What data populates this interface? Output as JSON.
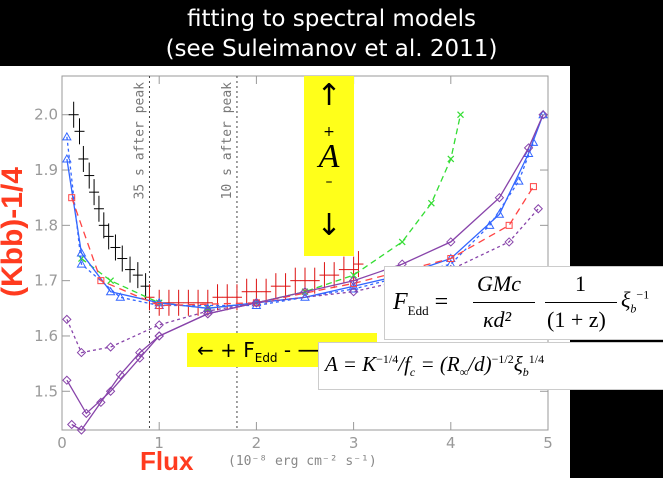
{
  "header": {
    "line1": "fitting to spectral models",
    "line2": "(see Suleimanov et al. 2011)"
  },
  "axis": {
    "ylabel": "(Kbb)-1/4",
    "xlabel": "Flux",
    "xunit": "(10⁻⁸ erg cm⁻² s⁻¹)"
  },
  "annotations": {
    "peak35": "35 s after peak",
    "peak10": "10 s after peak",
    "a_up": "↑",
    "a_plus": "+",
    "a_symbol": "A",
    "a_minus": "–",
    "a_down": "↓",
    "fedd_label": "←   + F",
    "fedd_sub": "Edd",
    "fedd_tail": " - ⟶"
  },
  "equations": {
    "eq1_lhs": "F",
    "eq1_lhs_sub": "Edd",
    "eq1_num": "GMc",
    "eq1_den": "κd²",
    "eq1_num2": "1",
    "eq1_den2": "(1 + z)",
    "eq1_xi": "ξ",
    "eq1_xi_sub": "b",
    "eq1_xi_sup": "−1",
    "eq2": "A = K",
    "eq2_sup1": "−1/4",
    "eq2_mid": "/f",
    "eq2_mid_sub": "c",
    "eq2_rest": " = (R",
    "eq2_rsub": "∞",
    "eq2_rest2": "/d)",
    "eq2_sup2": "−1/2",
    "eq2_xi": "ξ",
    "eq2_xi_sub": "b",
    "eq2_xi_sup": "1/4"
  },
  "colors": {
    "data": "#000000",
    "data_red": "#dd1111",
    "model_green": "#33dd33",
    "model_blue": "#3366ff",
    "model_purple": "#8844aa",
    "model_red": "#ff4444",
    "highlight": "#ffff1a",
    "label_red": "#ff3b1f"
  },
  "chart_data": {
    "type": "scatter",
    "xlabel": "Flux",
    "ylabel": "(Kbb)-1/4",
    "xlim": [
      0,
      5
    ],
    "ylim": [
      1.43,
      2.07
    ],
    "xticks": [
      0,
      1,
      2,
      3,
      4,
      5
    ],
    "yticks": [
      1.5,
      1.6,
      1.7,
      1.8,
      1.9,
      2.0
    ],
    "vlines": [
      {
        "x": 0.9,
        "label": "35 s after peak"
      },
      {
        "x": 1.8,
        "label": "10 s after peak"
      }
    ],
    "series": [
      {
        "kind": "errorbar",
        "color": "data",
        "points": [
          [
            0.12,
            2.0
          ],
          [
            0.18,
            1.97
          ],
          [
            0.22,
            1.92
          ],
          [
            0.28,
            1.89
          ],
          [
            0.33,
            1.86
          ],
          [
            0.38,
            1.83
          ],
          [
            0.43,
            1.8
          ],
          [
            0.48,
            1.78
          ],
          [
            0.55,
            1.76
          ],
          [
            0.62,
            1.74
          ],
          [
            0.7,
            1.72
          ],
          [
            0.78,
            1.71
          ],
          [
            0.86,
            1.69
          ]
        ]
      },
      {
        "kind": "errorbar",
        "color": "data_red",
        "points": [
          [
            0.9,
            1.67
          ],
          [
            1.0,
            1.66
          ],
          [
            1.1,
            1.66
          ],
          [
            1.2,
            1.66
          ],
          [
            1.3,
            1.66
          ],
          [
            1.4,
            1.66
          ],
          [
            1.5,
            1.66
          ],
          [
            1.6,
            1.67
          ],
          [
            1.7,
            1.67
          ],
          [
            1.8,
            1.67
          ],
          [
            1.9,
            1.68
          ],
          [
            2.0,
            1.68
          ],
          [
            2.1,
            1.68
          ],
          [
            2.2,
            1.69
          ],
          [
            2.3,
            1.69
          ],
          [
            2.4,
            1.7
          ],
          [
            2.5,
            1.7
          ],
          [
            2.6,
            1.7
          ],
          [
            2.7,
            1.71
          ],
          [
            2.8,
            1.71
          ],
          [
            2.9,
            1.72
          ],
          [
            3.0,
            1.72
          ],
          [
            3.05,
            1.73
          ]
        ]
      },
      {
        "kind": "line",
        "dash": "6,4",
        "marker": "x",
        "color": "model_green",
        "points": [
          [
            0.2,
            1.74
          ],
          [
            0.5,
            1.7
          ],
          [
            1.0,
            1.66
          ],
          [
            1.5,
            1.65
          ],
          [
            2.0,
            1.66
          ],
          [
            2.5,
            1.68
          ],
          [
            3.0,
            1.71
          ],
          [
            3.5,
            1.77
          ],
          [
            3.8,
            1.84
          ],
          [
            4.0,
            1.92
          ],
          [
            4.1,
            2.0
          ]
        ]
      },
      {
        "kind": "line",
        "marker": "tri",
        "color": "model_blue",
        "points": [
          [
            0.05,
            1.92
          ],
          [
            0.2,
            1.75
          ],
          [
            0.5,
            1.68
          ],
          [
            1.0,
            1.66
          ],
          [
            1.5,
            1.65
          ],
          [
            2.0,
            1.66
          ],
          [
            2.5,
            1.67
          ],
          [
            3.0,
            1.69
          ],
          [
            3.5,
            1.71
          ],
          [
            4.0,
            1.74
          ],
          [
            4.5,
            1.82
          ],
          [
            4.8,
            1.93
          ],
          [
            4.95,
            2.0
          ]
        ]
      },
      {
        "kind": "line",
        "dash": "3,3",
        "marker": "tri",
        "color": "model_blue",
        "points": [
          [
            0.05,
            1.96
          ],
          [
            0.2,
            1.73
          ],
          [
            0.6,
            1.67
          ],
          [
            1.0,
            1.655
          ],
          [
            2.0,
            1.655
          ],
          [
            3.0,
            1.685
          ],
          [
            4.0,
            1.73
          ],
          [
            4.4,
            1.8
          ],
          [
            4.7,
            1.88
          ],
          [
            4.85,
            1.95
          ]
        ]
      },
      {
        "kind": "line",
        "dash": "7,5",
        "marker": "sq",
        "color": "model_red",
        "points": [
          [
            0.1,
            1.85
          ],
          [
            0.4,
            1.7
          ],
          [
            1.0,
            1.655
          ],
          [
            2.0,
            1.66
          ],
          [
            3.0,
            1.695
          ],
          [
            4.0,
            1.74
          ],
          [
            4.6,
            1.8
          ],
          [
            4.85,
            1.87
          ]
        ]
      },
      {
        "kind": "line",
        "marker": "dia",
        "color": "model_purple",
        "points": [
          [
            0.1,
            1.44
          ],
          [
            0.2,
            1.43
          ],
          [
            0.4,
            1.48
          ],
          [
            0.6,
            1.53
          ],
          [
            0.8,
            1.57
          ],
          [
            1.0,
            1.6
          ],
          [
            1.5,
            1.64
          ],
          [
            2.0,
            1.66
          ],
          [
            2.5,
            1.68
          ],
          [
            3.0,
            1.7
          ],
          [
            3.5,
            1.73
          ],
          [
            4.0,
            1.77
          ],
          [
            4.5,
            1.85
          ],
          [
            4.8,
            1.94
          ],
          [
            4.95,
            2.0
          ]
        ]
      },
      {
        "kind": "line",
        "dash": "3,3",
        "marker": "dia",
        "color": "model_purple",
        "points": [
          [
            0.05,
            1.63
          ],
          [
            0.2,
            1.57
          ],
          [
            0.5,
            1.58
          ],
          [
            1.0,
            1.62
          ],
          [
            1.5,
            1.645
          ],
          [
            2.0,
            1.66
          ],
          [
            3.0,
            1.68
          ],
          [
            4.0,
            1.72
          ],
          [
            4.6,
            1.77
          ],
          [
            4.9,
            1.83
          ]
        ]
      },
      {
        "kind": "line",
        "marker": "dia",
        "color": "model_purple",
        "points": [
          [
            0.05,
            1.52
          ],
          [
            0.25,
            1.46
          ],
          [
            0.5,
            1.5
          ],
          [
            0.8,
            1.56
          ],
          [
            1.0,
            1.6
          ],
          [
            1.5,
            1.64
          ],
          [
            2.0,
            1.66
          ]
        ]
      }
    ]
  }
}
